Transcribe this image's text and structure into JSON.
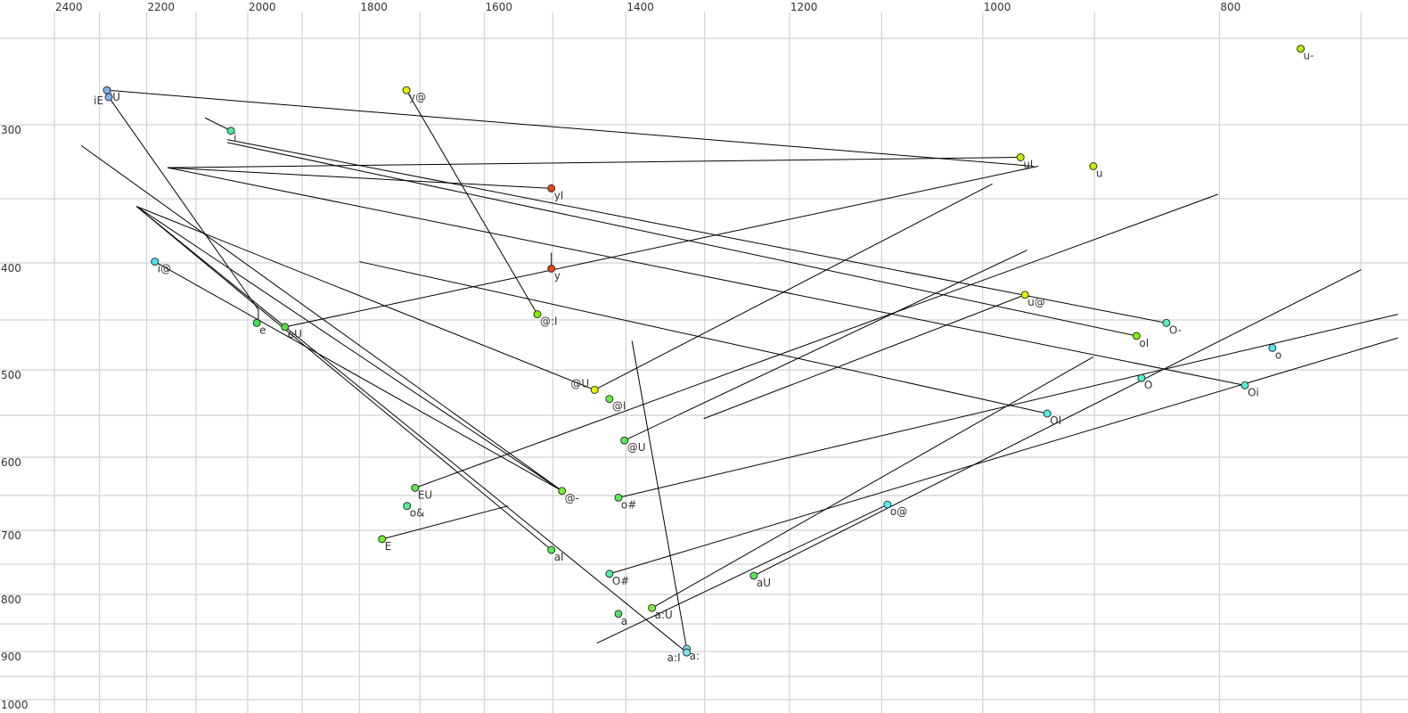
{
  "chart_data": {
    "type": "scatter",
    "title": "",
    "xlabel": "",
    "ylabel": "",
    "x_axis": {
      "quantity": "F2",
      "reversed": true,
      "scale": "log",
      "range": [
        2400,
        670
      ],
      "tick_labels": [
        2400,
        2200,
        2000,
        1800,
        1600,
        1400,
        1200,
        1000,
        800
      ],
      "minor_gridlines": [
        2300,
        2100,
        1900,
        1700,
        1500,
        1300,
        1100,
        900,
        700
      ],
      "position": "top"
    },
    "y_axis": {
      "quantity": "F1",
      "reversed": true,
      "scale": "nonlinear",
      "range": [
        235,
        1020
      ],
      "tick_labels": [
        300,
        400,
        500,
        600,
        700,
        800,
        900,
        1000
      ],
      "minor_gridlines": [
        250,
        350,
        450,
        550,
        650,
        750,
        850,
        950
      ],
      "position": "left"
    },
    "grid": true,
    "line_color": "#000000",
    "points": [
      {
        "label": "u-",
        "f2": 741,
        "f1": 256,
        "color": "#b4f000"
      },
      {
        "label": "iU",
        "f2": 2284,
        "f1": 280,
        "color": "#80b0f0"
      },
      {
        "label": "iE",
        "f2": 2280,
        "f1": 284,
        "color": "#80b0f0"
      },
      {
        "label": "y@",
        "f2": 1722,
        "f1": 280,
        "color": "#e8f000"
      },
      {
        "label": "i",
        "f2": 2032,
        "f1": 304,
        "color": "#50e8a0"
      },
      {
        "label": "uI",
        "f2": 965,
        "f1": 322,
        "color": "#c0f000"
      },
      {
        "label": "u",
        "f2": 901,
        "f1": 328,
        "color": "#c0f000"
      },
      {
        "label": "yI",
        "f2": 1502,
        "f1": 343,
        "color": "#e04a10"
      },
      {
        "label": "y",
        "f2": 1502,
        "f1": 405,
        "color": "#e04a10"
      },
      {
        "label": "i@",
        "f2": 2183,
        "f1": 399,
        "color": "#50e0f0"
      },
      {
        "label": "@:I",
        "f2": 1522,
        "f1": 445,
        "color": "#80f000"
      },
      {
        "label": "u@",
        "f2": 961,
        "f1": 428,
        "color": "#e0f000"
      },
      {
        "label": "O-",
        "f2": 841,
        "f1": 453,
        "color": "#50f0b0"
      },
      {
        "label": "e",
        "f2": 1983,
        "f1": 453,
        "color": "#40e050"
      },
      {
        "label": "eU",
        "f2": 1931,
        "f1": 457,
        "color": "#50e040"
      },
      {
        "label": "oI",
        "f2": 865,
        "f1": 466,
        "color": "#80f000"
      },
      {
        "label": "o",
        "f2": 761,
        "f1": 478,
        "color": "#50e8f0"
      },
      {
        "label": "O",
        "f2": 861,
        "f1": 509,
        "color": "#50f0d0"
      },
      {
        "label": "Oi",
        "f2": 781,
        "f1": 517,
        "color": "#50f0e0"
      },
      {
        "label": "@U",
        "f2": 1442,
        "f1": 522,
        "color": "#e0f000"
      },
      {
        "label": "@I",
        "f2": 1422,
        "f1": 532,
        "color": "#60f040"
      },
      {
        "label": "OI",
        "f2": 941,
        "f1": 548,
        "color": "#50f0e0"
      },
      {
        "label": "@U",
        "f2": 1402,
        "f1": 580,
        "color": "#50f040"
      },
      {
        "label": "EU",
        "f2": 1708,
        "f1": 640,
        "color": "#50f040"
      },
      {
        "label": "@-",
        "f2": 1487,
        "f1": 644,
        "color": "#70f030"
      },
      {
        "label": "o#",
        "f2": 1410,
        "f1": 653,
        "color": "#50f050"
      },
      {
        "label": "o&",
        "f2": 1721,
        "f1": 665,
        "color": "#50f090"
      },
      {
        "label": "o@",
        "f2": 1094,
        "f1": 663,
        "color": "#50f0f0"
      },
      {
        "label": "E",
        "f2": 1762,
        "f1": 713,
        "color": "#70f030"
      },
      {
        "label": "aI",
        "f2": 1502,
        "f1": 729,
        "color": "#50f050"
      },
      {
        "label": "O#",
        "f2": 1422,
        "f1": 766,
        "color": "#50f0a0"
      },
      {
        "label": "aU",
        "f2": 1241,
        "f1": 769,
        "color": "#50f050"
      },
      {
        "label": "a",
        "f2": 1410,
        "f1": 833,
        "color": "#50e070"
      },
      {
        "label": "a:U",
        "f2": 1366,
        "f1": 823,
        "color": "#80f030"
      },
      {
        "label": "a:",
        "f2": 1322,
        "f1": 895,
        "color": "#80e0f0"
      },
      {
        "label": "a:I",
        "f2": 1322,
        "f1": 902,
        "color": "#80e0f0"
      }
    ],
    "segments": [
      [
        [
          2284,
          280
        ],
        [
          953,
          328
        ]
      ],
      [
        [
          2280,
          284
        ],
        [
          1980,
          441
        ]
      ],
      [
        [
          1980,
          441
        ],
        [
          1980,
          453
        ]
      ],
      [
        [
          2082,
          296
        ],
        [
          2032,
          304
        ]
      ],
      [
        [
          2039,
          310
        ],
        [
          841,
          453
        ]
      ],
      [
        [
          2039,
          312
        ],
        [
          865,
          466
        ]
      ],
      [
        [
          2157,
          329
        ],
        [
          965,
          322
        ]
      ],
      [
        [
          2157,
          329
        ],
        [
          1502,
          343
        ]
      ],
      [
        [
          2157,
          329
        ],
        [
          781,
          517
        ]
      ],
      [
        [
          1722,
          280
        ],
        [
          1522,
          445
        ]
      ],
      [
        [
          1931,
          457
        ],
        [
          949,
          328
        ]
      ],
      [
        [
          1502,
          392
        ],
        [
          1502,
          405
        ]
      ],
      [
        [
          2340,
          314
        ],
        [
          1487,
          644
        ]
      ],
      [
        [
          2221,
          356
        ],
        [
          1442,
          522
        ]
      ],
      [
        [
          2221,
          356
        ],
        [
          1487,
          644
        ]
      ],
      [
        [
          2221,
          356
        ],
        [
          1502,
          729
        ]
      ],
      [
        [
          2221,
          356
        ],
        [
          1322,
          902
        ]
      ],
      [
        [
          2183,
          399
        ],
        [
          1487,
          644
        ]
      ],
      [
        [
          1800,
          399
        ],
        [
          941,
          548
        ]
      ],
      [
        [
          1442,
          522
        ],
        [
          991,
          340
        ]
      ],
      [
        [
          1708,
          640
        ],
        [
          801,
          347
        ]
      ],
      [
        [
          1402,
          580
        ],
        [
          959,
          390
        ]
      ],
      [
        [
          1301,
          554
        ],
        [
          961,
          428
        ]
      ],
      [
        [
          1762,
          713
        ],
        [
          1565,
          665
        ]
      ],
      [
        [
          1410,
          653
        ],
        [
          676,
          445
        ]
      ],
      [
        [
          1422,
          766
        ],
        [
          676,
          468
        ]
      ],
      [
        [
          1366,
          823
        ],
        [
          901,
          487
        ]
      ],
      [
        [
          1241,
          769
        ],
        [
          700,
          406
        ]
      ],
      [
        [
          1439,
          885
        ],
        [
          1094,
          663
        ]
      ],
      [
        [
          1392,
          471
        ],
        [
          1322,
          895
        ]
      ]
    ]
  }
}
